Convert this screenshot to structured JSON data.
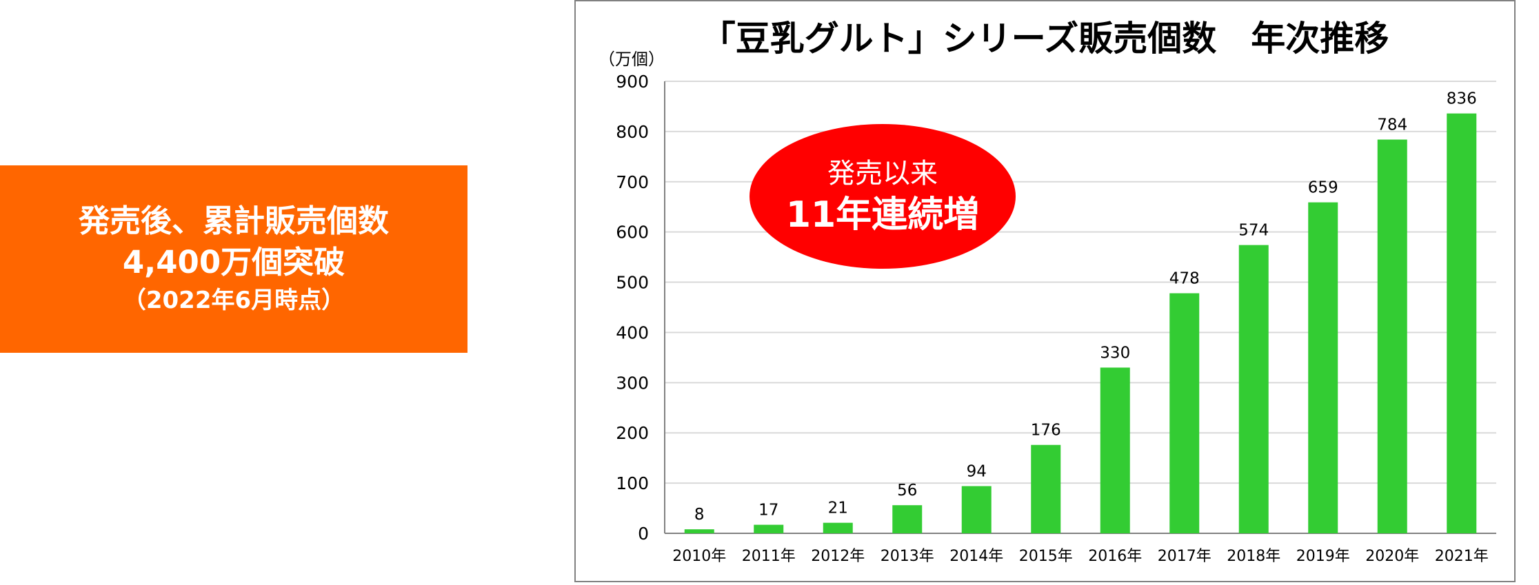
{
  "callout": {
    "line1": "発売後、累計販売個数",
    "line2": "4,400万個突破",
    "line3": "（2022年6月時点）",
    "background": "#ff6600"
  },
  "annotation": {
    "line1": "発売以来",
    "line2": "11年連続増",
    "color": "#ff0000"
  },
  "chart_data": {
    "type": "bar",
    "title": "「豆乳グルト」シリーズ販売個数　年次推移",
    "unit_label": "（万個）",
    "categories": [
      "2010年",
      "2011年",
      "2012年",
      "2013年",
      "2014年",
      "2015年",
      "2016年",
      "2017年",
      "2018年",
      "2019年",
      "2020年",
      "2021年"
    ],
    "values": [
      8,
      17,
      21,
      56,
      94,
      176,
      330,
      478,
      574,
      659,
      784,
      836
    ],
    "ylim": [
      0,
      900
    ],
    "yticks": [
      0,
      100,
      200,
      300,
      400,
      500,
      600,
      700,
      800,
      900
    ],
    "bar_color": "#33cc33",
    "grid": true,
    "data_labels": true
  }
}
